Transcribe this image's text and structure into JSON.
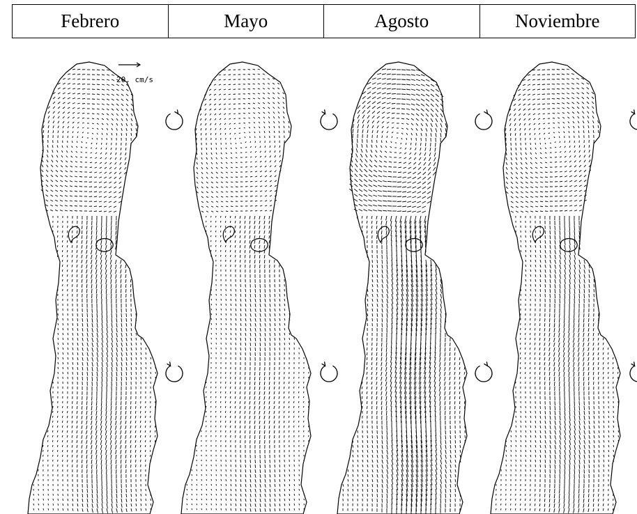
{
  "header": {
    "months": [
      "Febrero",
      "Mayo",
      "Agosto",
      "Noviembre"
    ]
  },
  "scale": {
    "label": "20. cm/s"
  },
  "rotation": {
    "by_month": [
      {
        "upper": "clockwise",
        "lower": "counterclockwise"
      },
      {
        "upper": "counterclockwise",
        "lower": "counterclockwise"
      },
      {
        "upper": "clockwise",
        "lower": "clockwise"
      },
      {
        "upper": "counterclockwise",
        "lower": "counterclockwise"
      }
    ]
  },
  "flow_intensity": [
    0.55,
    0.35,
    1.0,
    0.55
  ],
  "colors": {
    "line": "#000000",
    "background": "#ffffff"
  }
}
